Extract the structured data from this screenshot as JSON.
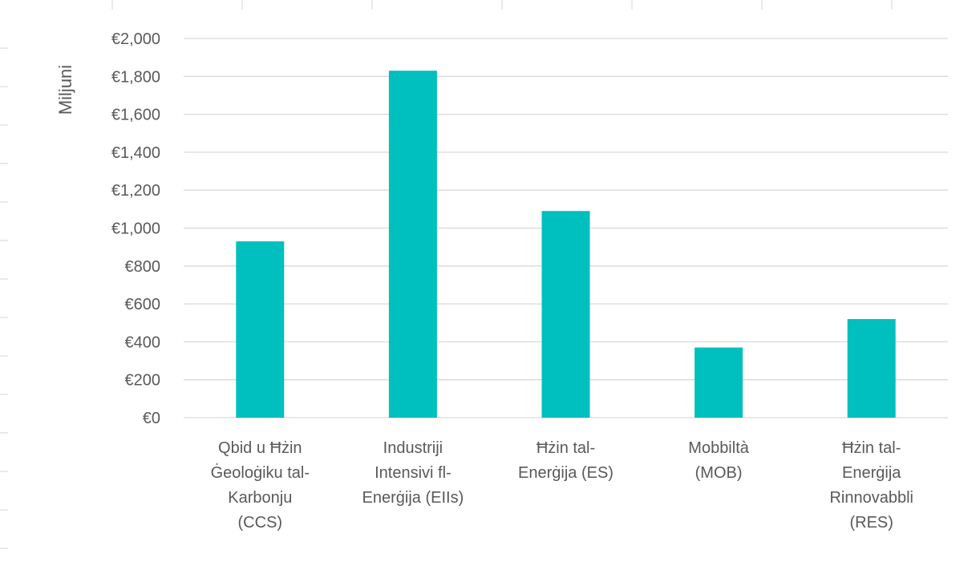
{
  "colors": {
    "bar": "#00bfbf",
    "gridline": "#d9d9d9",
    "text": "#595959",
    "sheet_gridline": "#d4d4d4"
  },
  "chart_data": {
    "type": "bar",
    "title": "",
    "xlabel": "",
    "ylabel": "Miljuni",
    "categories": [
      "Qbid u Ħżin Ġeoloġiku tal-Karbonju (CCS)",
      "Industriji Intensivi fl-Enerġija (EIIs)",
      "Ħżin tal-Enerġija (ES)",
      "Mobbiltà (MOB)",
      "Ħżin tal-Enerġija Rinnovabbli (RES)"
    ],
    "category_lines": [
      [
        "Qbid u Ħżin",
        "Ġeoloġiku tal-",
        "Karbonju",
        "(CCS)"
      ],
      [
        "Industriji",
        "Intensivi fl-",
        "Enerġija (EIIs)"
      ],
      [
        "Ħżin tal-",
        "Enerġija (ES)"
      ],
      [
        "Mobbiltà",
        "(MOB)"
      ],
      [
        "Ħżin tal-",
        "Enerġija",
        "Rinnovabbli",
        "(RES)"
      ]
    ],
    "values": [
      930,
      1830,
      1090,
      370,
      520
    ],
    "ylim": [
      0,
      2000
    ],
    "y_ticks": [
      0,
      200,
      400,
      600,
      800,
      1000,
      1200,
      1400,
      1600,
      1800,
      2000
    ],
    "y_tick_labels": [
      "€0",
      "€200",
      "€400",
      "€600",
      "€800",
      "€1,000",
      "€1,200",
      "€1,400",
      "€1,600",
      "€1,800",
      "€2,000"
    ],
    "grid": true,
    "legend": "none"
  }
}
